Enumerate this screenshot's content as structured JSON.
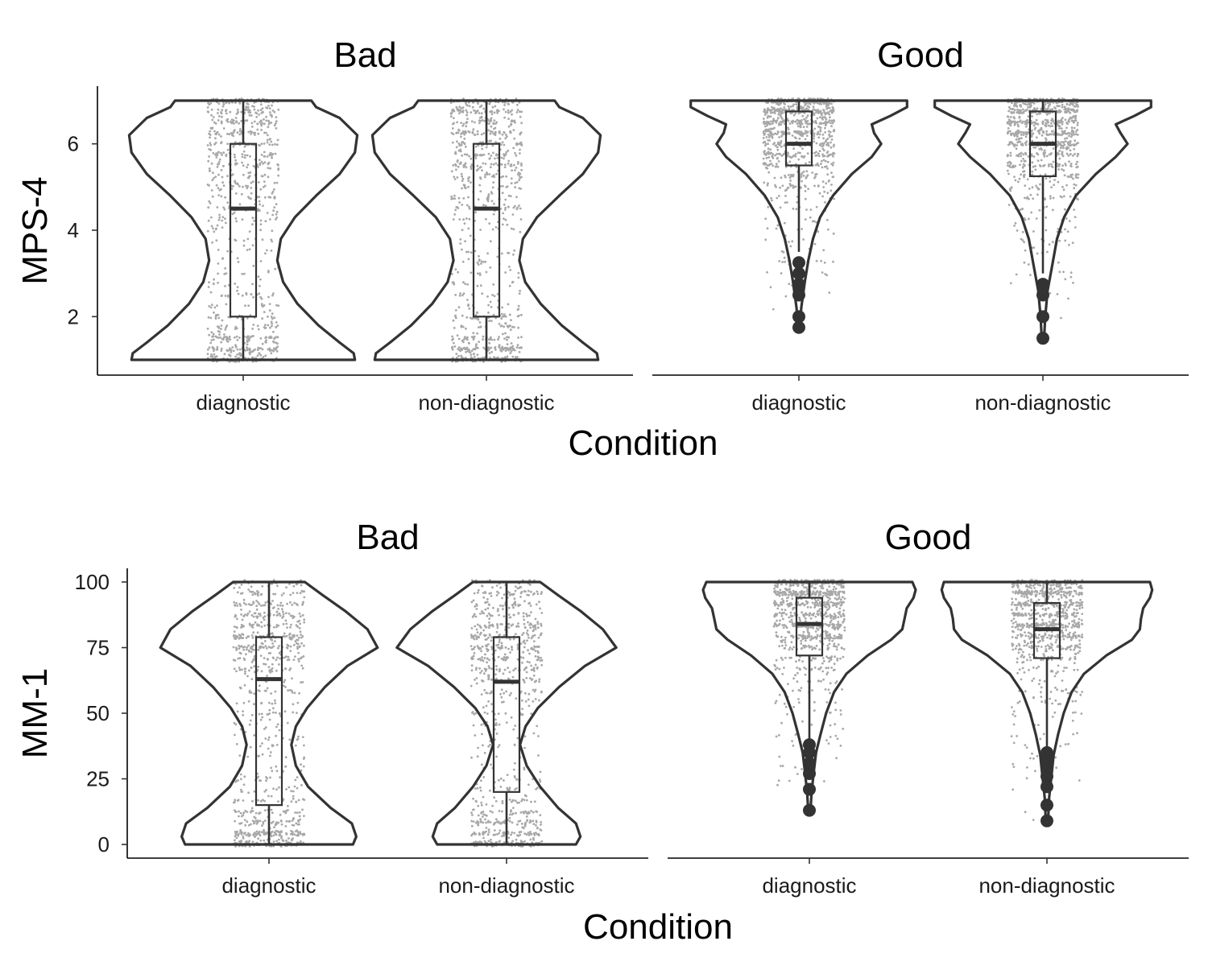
{
  "chart_data": [
    {
      "type": "violin",
      "ylabel": "MPS-4",
      "xlabel": "Condition",
      "yticks": [
        2,
        4,
        6
      ],
      "ylim": [
        0.6,
        7.4
      ],
      "panels": [
        {
          "title": "Bad",
          "groups": [
            {
              "category": "diagnostic",
              "range": [
                1,
                7
              ],
              "box": {
                "q1": 2,
                "median": 4.5,
                "q3": 6,
                "whisker_low": 1,
                "whisker_high": 7
              },
              "outliers": [],
              "density": [
                [
                  1,
                  0.95
                ],
                [
                  1.15,
                  0.94
                ],
                [
                  1.4,
                  0.82
                ],
                [
                  1.8,
                  0.64
                ],
                [
                  2.3,
                  0.46
                ],
                [
                  2.8,
                  0.34
                ],
                [
                  3.3,
                  0.29
                ],
                [
                  3.8,
                  0.32
                ],
                [
                  4.3,
                  0.44
                ],
                [
                  4.8,
                  0.62
                ],
                [
                  5.3,
                  0.82
                ],
                [
                  5.8,
                  0.95
                ],
                [
                  6.2,
                  0.97
                ],
                [
                  6.6,
                  0.82
                ],
                [
                  6.85,
                  0.62
                ],
                [
                  7,
                  0.58
                ]
              ]
            },
            {
              "category": "non-diagnostic",
              "range": [
                1,
                7
              ],
              "box": {
                "q1": 2,
                "median": 4.5,
                "q3": 6,
                "whisker_low": 1,
                "whisker_high": 7
              },
              "outliers": [],
              "density": [
                [
                  1,
                  0.95
                ],
                [
                  1.15,
                  0.94
                ],
                [
                  1.4,
                  0.82
                ],
                [
                  1.8,
                  0.64
                ],
                [
                  2.3,
                  0.46
                ],
                [
                  2.8,
                  0.33
                ],
                [
                  3.3,
                  0.28
                ],
                [
                  3.8,
                  0.31
                ],
                [
                  4.3,
                  0.43
                ],
                [
                  4.8,
                  0.62
                ],
                [
                  5.3,
                  0.82
                ],
                [
                  5.8,
                  0.95
                ],
                [
                  6.2,
                  0.97
                ],
                [
                  6.6,
                  0.82
                ],
                [
                  6.85,
                  0.62
                ],
                [
                  7,
                  0.58
                ]
              ]
            }
          ]
        },
        {
          "title": "Good",
          "groups": [
            {
              "category": "diagnostic",
              "range": [
                1.75,
                7
              ],
              "box": {
                "q1": 5.5,
                "median": 6,
                "q3": 6.75,
                "whisker_low": 3.5,
                "whisker_high": 7
              },
              "outliers": [
                1.75,
                2,
                2.5,
                2.75,
                3,
                3.25
              ],
              "density": [
                [
                  1.75,
                  0.01
                ],
                [
                  2.2,
                  0.02
                ],
                [
                  2.8,
                  0.05
                ],
                [
                  3.3,
                  0.08
                ],
                [
                  3.8,
                  0.12
                ],
                [
                  4.3,
                  0.18
                ],
                [
                  4.8,
                  0.29
                ],
                [
                  5.3,
                  0.45
                ],
                [
                  5.7,
                  0.62
                ],
                [
                  6.0,
                  0.7
                ],
                [
                  6.25,
                  0.64
                ],
                [
                  6.45,
                  0.62
                ],
                [
                  6.65,
                  0.78
                ],
                [
                  6.85,
                  0.92
                ],
                [
                  7,
                  0.92
                ]
              ]
            },
            {
              "category": "non-diagnostic",
              "range": [
                1.5,
                7
              ],
              "box": {
                "q1": 5.25,
                "median": 6,
                "q3": 6.75,
                "whisker_low": 3,
                "whisker_high": 7
              },
              "outliers": [
                1.5,
                2,
                2.5,
                2.75
              ],
              "density": [
                [
                  1.5,
                  0.01
                ],
                [
                  2.0,
                  0.02
                ],
                [
                  2.6,
                  0.04
                ],
                [
                  3.2,
                  0.08
                ],
                [
                  3.8,
                  0.12
                ],
                [
                  4.3,
                  0.18
                ],
                [
                  4.8,
                  0.28
                ],
                [
                  5.3,
                  0.45
                ],
                [
                  5.7,
                  0.62
                ],
                [
                  6.0,
                  0.72
                ],
                [
                  6.25,
                  0.66
                ],
                [
                  6.45,
                  0.62
                ],
                [
                  6.65,
                  0.78
                ],
                [
                  6.85,
                  0.92
                ],
                [
                  7,
                  0.92
                ]
              ]
            }
          ]
        }
      ]
    },
    {
      "type": "violin",
      "ylabel": "MM-1",
      "xlabel": "Condition",
      "yticks": [
        0,
        25,
        50,
        75,
        100
      ],
      "ylim": [
        -5,
        105
      ],
      "panels": [
        {
          "title": "Bad",
          "groups": [
            {
              "category": "diagnostic",
              "range": [
                0,
                100
              ],
              "box": {
                "q1": 15,
                "median": 63,
                "q3": 79,
                "whisker_low": 0,
                "whisker_high": 100
              },
              "outliers": [],
              "density": [
                [
                  0,
                  0.75
                ],
                [
                  3,
                  0.78
                ],
                [
                  8,
                  0.74
                ],
                [
                  14,
                  0.55
                ],
                [
                  22,
                  0.35
                ],
                [
                  30,
                  0.24
                ],
                [
                  38,
                  0.2
                ],
                [
                  45,
                  0.24
                ],
                [
                  52,
                  0.34
                ],
                [
                  60,
                  0.5
                ],
                [
                  68,
                  0.7
                ],
                [
                  75,
                  0.97
                ],
                [
                  82,
                  0.88
                ],
                [
                  89,
                  0.68
                ],
                [
                  95,
                  0.48
                ],
                [
                  100,
                  0.32
                ]
              ]
            },
            {
              "category": "non-diagnostic",
              "range": [
                0,
                100
              ],
              "box": {
                "q1": 20,
                "median": 62,
                "q3": 79,
                "whisker_low": 0,
                "whisker_high": 100
              },
              "outliers": [],
              "density": [
                [
                  0,
                  0.62
                ],
                [
                  3,
                  0.66
                ],
                [
                  8,
                  0.62
                ],
                [
                  14,
                  0.46
                ],
                [
                  22,
                  0.3
                ],
                [
                  30,
                  0.18
                ],
                [
                  38,
                  0.12
                ],
                [
                  45,
                  0.17
                ],
                [
                  52,
                  0.28
                ],
                [
                  60,
                  0.47
                ],
                [
                  68,
                  0.7
                ],
                [
                  75,
                  0.98
                ],
                [
                  82,
                  0.86
                ],
                [
                  89,
                  0.66
                ],
                [
                  95,
                  0.46
                ],
                [
                  100,
                  0.3
                ]
              ]
            }
          ]
        },
        {
          "title": "Good",
          "groups": [
            {
              "category": "diagnostic",
              "range": [
                13,
                100
              ],
              "box": {
                "q1": 72,
                "median": 84,
                "q3": 94,
                "whisker_low": 40,
                "whisker_high": 100
              },
              "outliers": [
                13,
                21,
                27,
                31,
                35,
                38
              ],
              "density": [
                [
                  13,
                  0.01
                ],
                [
                  20,
                  0.02
                ],
                [
                  28,
                  0.04
                ],
                [
                  35,
                  0.06
                ],
                [
                  42,
                  0.1
                ],
                [
                  50,
                  0.15
                ],
                [
                  58,
                  0.22
                ],
                [
                  65,
                  0.33
                ],
                [
                  72,
                  0.52
                ],
                [
                  78,
                  0.73
                ],
                [
                  82,
                  0.83
                ],
                [
                  86,
                  0.85
                ],
                [
                  90,
                  0.87
                ],
                [
                  94,
                  0.93
                ],
                [
                  97,
                  0.95
                ],
                [
                  100,
                  0.92
                ]
              ]
            },
            {
              "category": "non-diagnostic",
              "range": [
                9,
                100
              ],
              "box": {
                "q1": 71,
                "median": 82,
                "q3": 92,
                "whisker_low": 37,
                "whisker_high": 100
              },
              "outliers": [
                9,
                15,
                22,
                26,
                30,
                33,
                35
              ],
              "density": [
                [
                  9,
                  0.01
                ],
                [
                  18,
                  0.02
                ],
                [
                  26,
                  0.04
                ],
                [
                  34,
                  0.06
                ],
                [
                  42,
                  0.1
                ],
                [
                  50,
                  0.15
                ],
                [
                  58,
                  0.22
                ],
                [
                  65,
                  0.33
                ],
                [
                  72,
                  0.53
                ],
                [
                  78,
                  0.76
                ],
                [
                  82,
                  0.83
                ],
                [
                  86,
                  0.84
                ],
                [
                  90,
                  0.86
                ],
                [
                  94,
                  0.92
                ],
                [
                  97,
                  0.94
                ],
                [
                  100,
                  0.92
                ]
              ]
            }
          ]
        }
      ]
    }
  ]
}
